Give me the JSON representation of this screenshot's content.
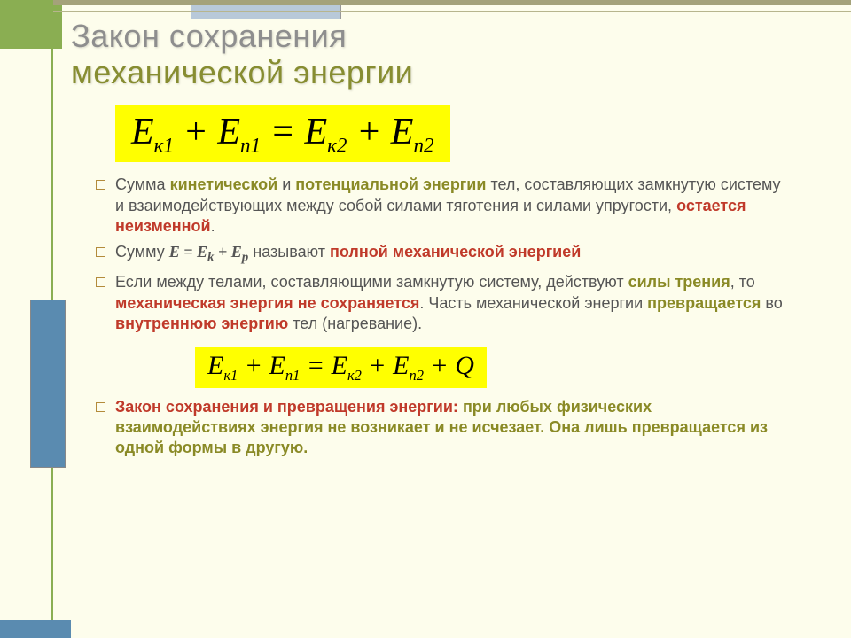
{
  "slide": {
    "title_line1": "Закон сохранения",
    "title_line2": "механической энергии",
    "eq_main": "E<span class=\"sub\">к1</span> + E<span class=\"sub\">п1</span> = E<span class=\"sub\">к2</span> + E<span class=\"sub\">п2</span>",
    "eq_heat": "E<span class=\"sub\">к1</span> + E<span class=\"sub\">п1</span> = E<span class=\"sub\">к2</span> + E<span class=\"sub\">п2</span> + Q",
    "bullets": [
      "Сумма <span class=\"olive\">кинетической</span> и <span class=\"olive\">потенциальной энергии</span> тел, составляющих замкнутую систему и взаимодействующих между собой силами тяготения и силами упругости, <span class=\"red\">остается неизменной</span>.",
      "Сумму <span class=\"inline-eq bold\">E = E<sub>k</sub> + E<sub>p</sub></span> называют <span class=\"red\">полной механической энергией</span>",
      "Если между телами, составляющими замкнутую систему, действуют <span class=\"olive\">силы трения</span>, то <span class=\"red\">механическая энергия не сохраняется</span>. Часть механической энергии <span class=\"olive\">превращается</span> во <span class=\"red\">внутреннюю энергию</span> тел (нагревание).",
      "<span class=\"red\">Закон сохранения и превращения энергии:</span> <span class=\"olive\">при любых физических взаимодействиях энергия не возникает и не исчезает. Она лишь превращается из одной формы в другую.</span>"
    ]
  },
  "style": {
    "bg_color": "#fdfdec",
    "highlight_color": "#ffff00",
    "title_color": "#8e8e8e",
    "accent_red": "#c03a2a",
    "accent_olive": "#8a8a26",
    "border_green": "#8aae52",
    "deco_blue": "#5a8bb0",
    "title_fontsize": 36,
    "body_fontsize": 18,
    "eq_main_fontsize": 42,
    "eq_heat_fontsize": 30
  }
}
